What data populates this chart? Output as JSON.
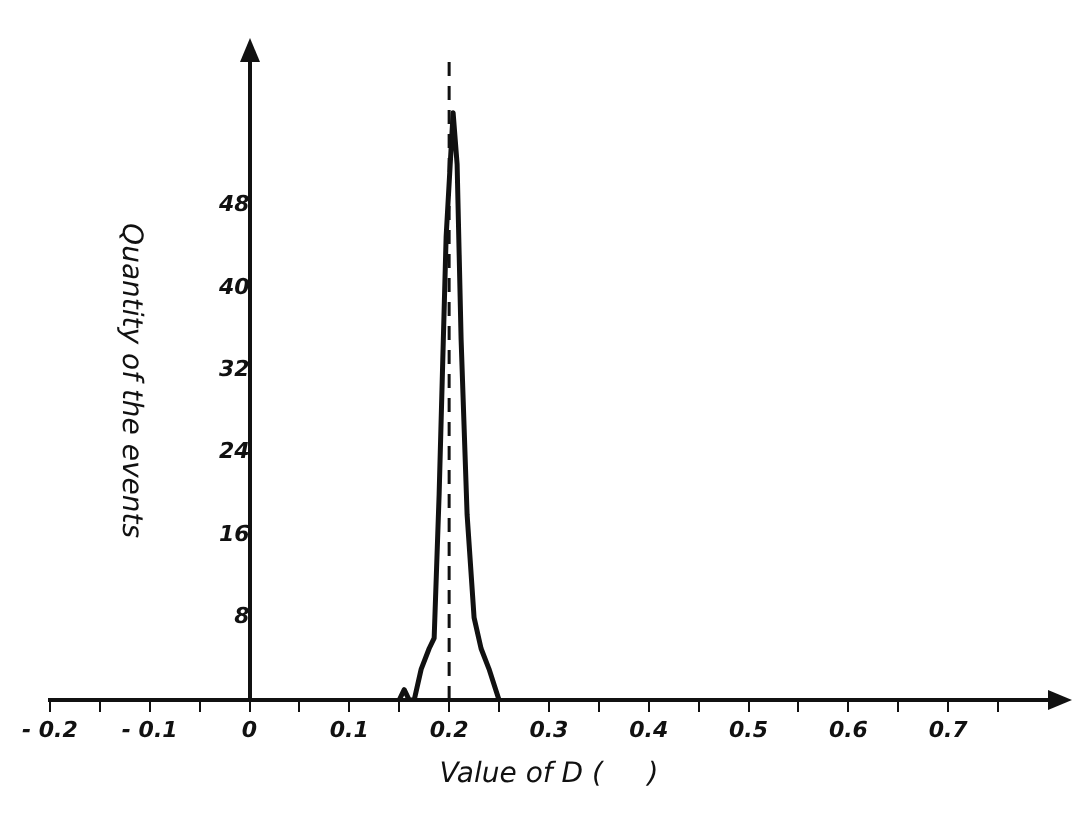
{
  "chart_data": {
    "type": "line",
    "xlabel": "Value of D (     )",
    "ylabel": "Quantity of the events",
    "xlim": [
      -0.2,
      0.8
    ],
    "xticks": [
      -0.2,
      {
        "value": -0.15,
        "label": null
      },
      -0.1,
      {
        "value": -0.05,
        "label": null
      },
      0,
      {
        "value": 0.05,
        "label": null
      },
      0.1,
      {
        "value": 0.15,
        "label": null
      },
      0.2,
      {
        "value": 0.25,
        "label": null
      },
      0.3,
      {
        "value": 0.35,
        "label": null
      },
      0.4,
      {
        "value": 0.45,
        "label": null
      },
      0.5,
      {
        "value": 0.55,
        "label": null
      },
      0.6,
      {
        "value": 0.65,
        "label": null
      },
      0.7,
      {
        "value": 0.75,
        "label": null
      }
    ],
    "ylim": [
      0,
      62
    ],
    "yticks": [
      8,
      16,
      24,
      32,
      40,
      48
    ],
    "series": [
      {
        "color": "#111111",
        "x": [
          0.15,
          0.155,
          0.16,
          0.165,
          0.172,
          0.18,
          0.185,
          0.19,
          0.197,
          0.204,
          0.208,
          0.212,
          0.218,
          0.225,
          0.232,
          0.24,
          0.25
        ],
        "values": [
          0,
          1,
          0,
          0,
          3,
          5,
          6,
          20,
          45,
          57,
          52,
          35,
          18,
          8,
          5,
          3,
          0
        ]
      }
    ],
    "ref_lines": [
      {
        "axis": "x",
        "value": 0.2,
        "color": "#111111",
        "line_style": "dashed"
      }
    ],
    "grid": false,
    "legend": false,
    "marker": "none",
    "line_style": "solid"
  }
}
